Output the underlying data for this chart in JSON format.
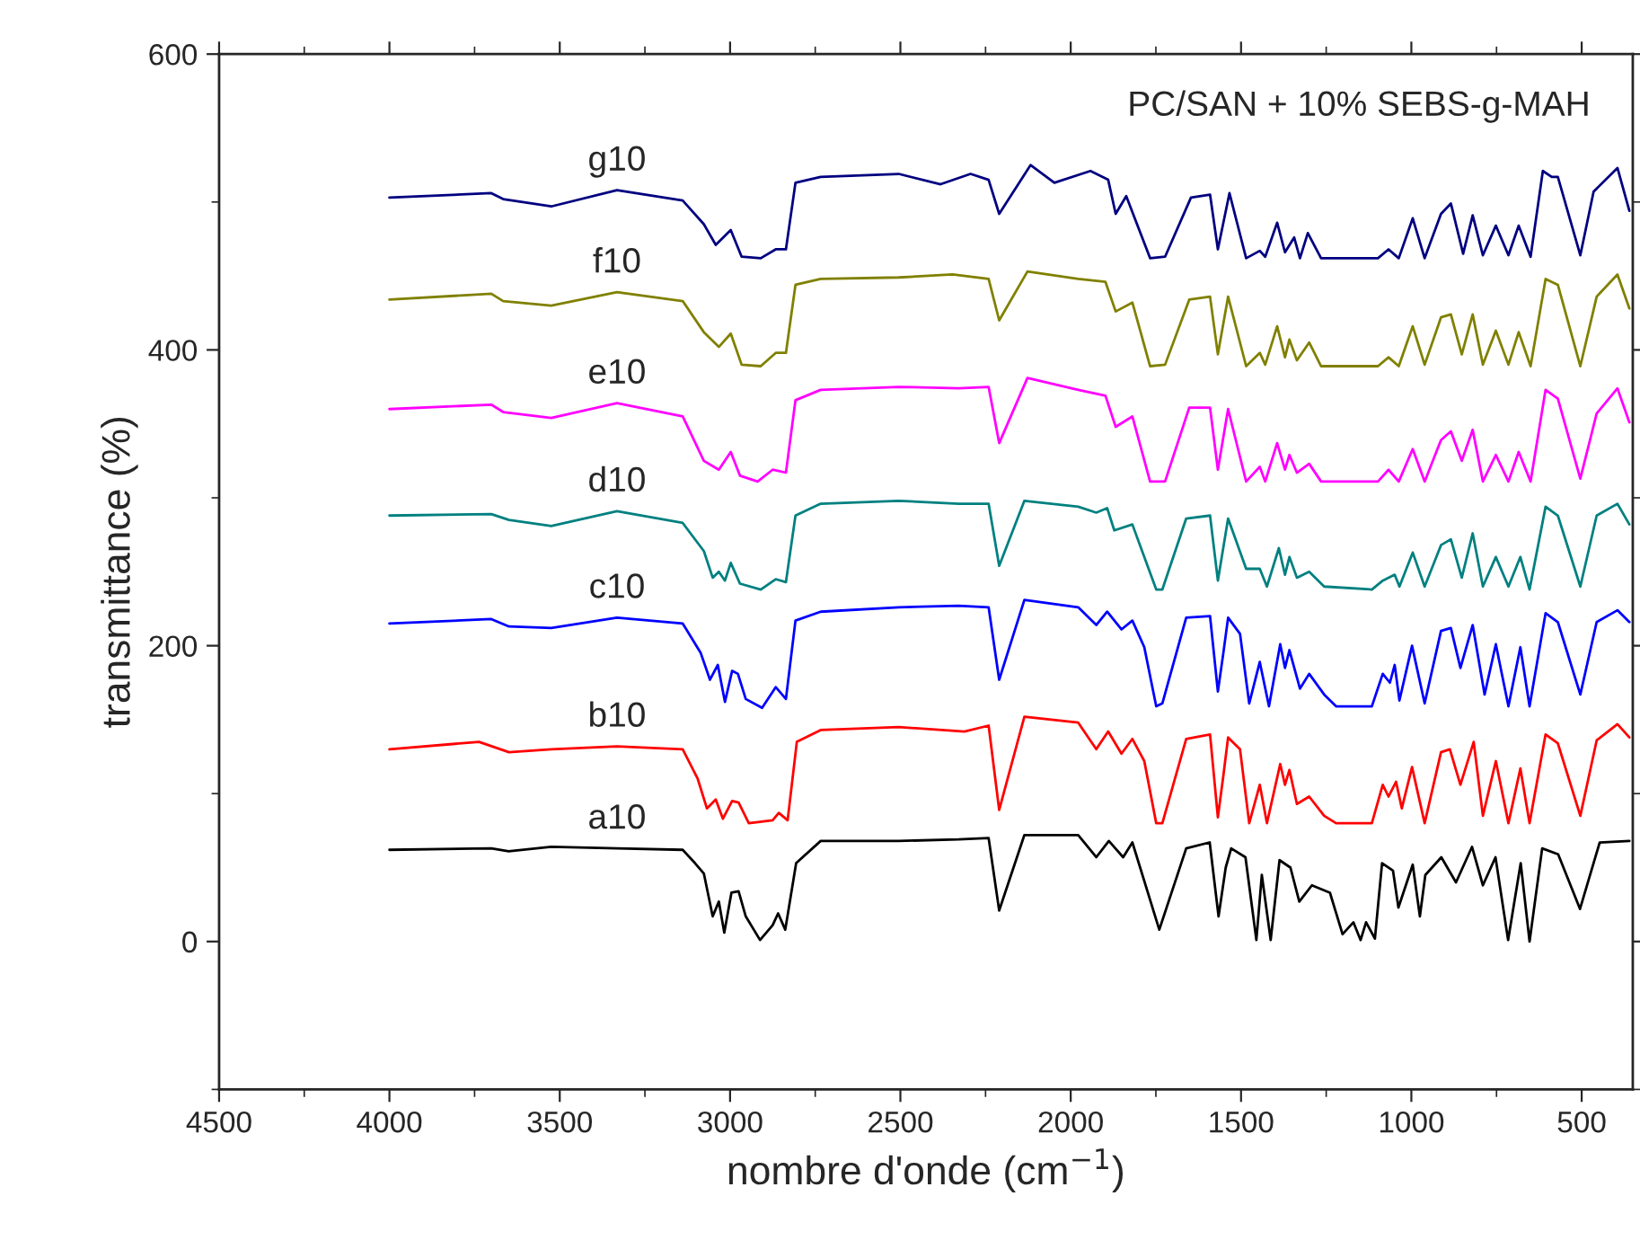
{
  "chart_data": {
    "type": "line",
    "title": "PC/SAN + 10% SEBS-g-MAH",
    "xlabel": "nombre d'onde (cm$^{−1}$)",
    "ylabel": "transmittance (%)",
    "xlim": [
      4500,
      350
    ],
    "ylim": [
      -100,
      600
    ],
    "xticks": [
      4500,
      {
        "value": 4250,
        "label": null
      },
      4000,
      {
        "value": 3750,
        "label": null
      },
      3500,
      {
        "value": 3250,
        "label": null
      },
      3000,
      {
        "value": 2750,
        "label": null
      },
      2500,
      {
        "value": 2250,
        "label": null
      },
      2000,
      {
        "value": 1750,
        "label": null
      },
      1500,
      {
        "value": 1250,
        "label": null
      },
      1000,
      {
        "value": 750,
        "label": null
      },
      500
    ],
    "yticks": [
      {
        "value": -100,
        "label": null
      },
      0,
      {
        "value": 100,
        "label": null
      },
      200,
      {
        "value": 300,
        "label": null
      },
      400,
      {
        "value": 500,
        "label": null
      },
      600
    ],
    "grid": false,
    "legend": false,
    "series": [
      {
        "name": "a10",
        "color": "#000000",
        "x": [
          4000,
          3701,
          3650,
          3525,
          3332,
          3139,
          3103,
          3077,
          3051,
          3033,
          3017,
          2996,
          2975,
          2954,
          2912,
          2875,
          2859,
          2838,
          2806,
          2734,
          2505,
          2329,
          2241,
          2210,
          2136,
          1978,
          1925,
          1888,
          1846,
          1819,
          1740,
          1661,
          1592,
          1566,
          1545,
          1529,
          1487,
          1455,
          1439,
          1413,
          1387,
          1355,
          1329,
          1292,
          1239,
          1202,
          1170,
          1149,
          1133,
          1107,
          1086,
          1054,
          1038,
          996,
          975,
          959,
          912,
          869,
          822,
          790,
          753,
          716,
          679,
          653,
          616,
          569,
          505,
          447,
          360
        ],
        "values": [
          62,
          63,
          61,
          64,
          63,
          62,
          53,
          46,
          17,
          27,
          6,
          33,
          34,
          17,
          1,
          11,
          19,
          8,
          53,
          68,
          68,
          69,
          70,
          21,
          72,
          72,
          57,
          68,
          57,
          67,
          8,
          63,
          67,
          17,
          50,
          63,
          57,
          1,
          45,
          1,
          55,
          50,
          27,
          38,
          33,
          5,
          13,
          1,
          13,
          2,
          53,
          48,
          23,
          52,
          17,
          45,
          57,
          40,
          64,
          38,
          57,
          1,
          53,
          0,
          63,
          59,
          22,
          67,
          68
        ]
      },
      {
        "name": "b10",
        "color": "#ff0000",
        "x": [
          4000,
          3737,
          3649,
          3525,
          3332,
          3139,
          3095,
          3068,
          3042,
          3021,
          2994,
          2975,
          2945,
          2875,
          2857,
          2831,
          2804,
          2734,
          2505,
          2312,
          2241,
          2210,
          2136,
          1978,
          1925,
          1890,
          1851,
          1819,
          1784,
          1749,
          1731,
          1661,
          1591,
          1568,
          1552,
          1538,
          1503,
          1476,
          1445,
          1424,
          1385,
          1371,
          1358,
          1336,
          1300,
          1256,
          1221,
          1116,
          1084,
          1067,
          1045,
          1028,
          998,
          961,
          913,
          887,
          856,
          817,
          790,
          752,
          715,
          680,
          653,
          606,
          570,
          504,
          456,
          395,
          360
        ],
        "values": [
          130,
          135,
          128,
          130,
          132,
          130,
          110,
          90,
          96,
          83,
          95,
          94,
          80,
          82,
          87,
          82,
          135,
          143,
          145,
          142,
          146,
          89,
          152,
          148,
          130,
          142,
          127,
          137,
          122,
          80,
          80,
          137,
          140,
          84,
          112,
          138,
          130,
          80,
          106,
          80,
          120,
          106,
          116,
          93,
          98,
          85,
          80,
          80,
          106,
          98,
          108,
          90,
          118,
          80,
          128,
          130,
          106,
          135,
          85,
          122,
          80,
          117,
          80,
          140,
          134,
          85,
          136,
          147,
          138
        ]
      },
      {
        "name": "c10",
        "color": "#0000ff",
        "x": [
          4000,
          3701,
          3649,
          3525,
          3332,
          3139,
          3086,
          3059,
          3036,
          3015,
          2994,
          2977,
          2954,
          2906,
          2866,
          2836,
          2808,
          2734,
          2505,
          2329,
          2241,
          2210,
          2136,
          1978,
          1925,
          1893,
          1851,
          1819,
          1784,
          1749,
          1731,
          1661,
          1591,
          1568,
          1552,
          1538,
          1503,
          1476,
          1445,
          1418,
          1385,
          1371,
          1358,
          1327,
          1300,
          1256,
          1221,
          1116,
          1084,
          1063,
          1049,
          1035,
          998,
          961,
          913,
          884,
          856,
          820,
          785,
          752,
          715,
          680,
          653,
          606,
          570,
          504,
          456,
          395,
          360
        ],
        "values": [
          215,
          218,
          213,
          212,
          219,
          215,
          195,
          177,
          187,
          162,
          183,
          181,
          164,
          158,
          172,
          164,
          217,
          223,
          226,
          227,
          226,
          177,
          231,
          226,
          214,
          223,
          211,
          217,
          199,
          159,
          161,
          219,
          220,
          169,
          195,
          219,
          208,
          161,
          189,
          159,
          201,
          185,
          197,
          171,
          181,
          167,
          159,
          159,
          181,
          175,
          187,
          163,
          200,
          161,
          210,
          212,
          185,
          214,
          167,
          201,
          159,
          199,
          159,
          222,
          216,
          167,
          216,
          224,
          216
        ]
      },
      {
        "name": "d10",
        "color": "#008080",
        "x": [
          4000,
          3701,
          3649,
          3525,
          3332,
          3139,
          3077,
          3051,
          3033,
          3015,
          2998,
          2971,
          2910,
          2866,
          2836,
          2808,
          2734,
          2505,
          2329,
          2241,
          2210,
          2136,
          1978,
          1925,
          1893,
          1872,
          1819,
          1749,
          1731,
          1661,
          1591,
          1568,
          1538,
          1485,
          1445,
          1424,
          1389,
          1371,
          1358,
          1336,
          1300,
          1256,
          1116,
          1084,
          1049,
          1035,
          996,
          961,
          913,
          884,
          852,
          820,
          790,
          752,
          715,
          680,
          653,
          606,
          570,
          504,
          456,
          395,
          360
        ],
        "values": [
          288,
          289,
          285,
          281,
          291,
          283,
          264,
          246,
          250,
          244,
          256,
          242,
          238,
          245,
          243,
          288,
          296,
          298,
          296,
          296,
          254,
          298,
          294,
          290,
          293,
          278,
          282,
          238,
          238,
          286,
          288,
          244,
          286,
          252,
          252,
          240,
          266,
          248,
          260,
          246,
          250,
          240,
          238,
          244,
          248,
          240,
          263,
          240,
          268,
          272,
          246,
          276,
          240,
          260,
          240,
          260,
          238,
          294,
          288,
          240,
          288,
          296,
          282
        ]
      },
      {
        "name": "e10",
        "color": "#ff00ff",
        "x": [
          4000,
          3701,
          3666,
          3525,
          3332,
          3139,
          3077,
          3033,
          2998,
          2971,
          2919,
          2875,
          2836,
          2808,
          2734,
          2505,
          2329,
          2241,
          2210,
          2127,
          1978,
          1898,
          1868,
          1819,
          1767,
          1723,
          1652,
          1591,
          1568,
          1538,
          1485,
          1445,
          1429,
          1394,
          1371,
          1358,
          1336,
          1300,
          1265,
          1098,
          1067,
          1037,
          996,
          961,
          913,
          884,
          852,
          820,
          790,
          752,
          715,
          685,
          650,
          606,
          570,
          504,
          456,
          395,
          360
        ],
        "values": [
          360,
          363,
          358,
          354,
          364,
          355,
          325,
          319,
          331,
          315,
          311,
          319,
          317,
          366,
          373,
          375,
          374,
          375,
          337,
          381,
          373,
          369,
          348,
          355,
          311,
          311,
          361,
          361,
          319,
          360,
          311,
          321,
          311,
          337,
          319,
          329,
          317,
          323,
          311,
          311,
          319,
          311,
          333,
          311,
          339,
          345,
          325,
          346,
          311,
          329,
          311,
          331,
          311,
          373,
          367,
          313,
          357,
          374,
          351
        ]
      },
      {
        "name": "f10",
        "color": "#808000",
        "x": [
          4000,
          3701,
          3666,
          3525,
          3332,
          3139,
          3077,
          3033,
          2998,
          2966,
          2910,
          2866,
          2836,
          2808,
          2734,
          2505,
          2347,
          2241,
          2210,
          2127,
          1978,
          1898,
          1868,
          1819,
          1767,
          1723,
          1652,
          1591,
          1568,
          1538,
          1485,
          1445,
          1429,
          1394,
          1371,
          1358,
          1336,
          1300,
          1265,
          1098,
          1067,
          1037,
          996,
          961,
          913,
          884,
          852,
          820,
          790,
          752,
          715,
          685,
          650,
          606,
          570,
          504,
          456,
          395,
          360
        ],
        "values": [
          434,
          438,
          433,
          430,
          439,
          433,
          412,
          402,
          411,
          390,
          389,
          398,
          398,
          444,
          448,
          449,
          451,
          448,
          420,
          453,
          448,
          446,
          426,
          432,
          389,
          390,
          434,
          436,
          397,
          436,
          389,
          398,
          390,
          416,
          395,
          407,
          393,
          405,
          389,
          389,
          395,
          389,
          416,
          390,
          422,
          424,
          397,
          424,
          390,
          413,
          390,
          412,
          389,
          448,
          444,
          389,
          436,
          451,
          428
        ]
      },
      {
        "name": "g10",
        "color": "#000080",
        "x": [
          4000,
          3701,
          3666,
          3525,
          3332,
          3139,
          3077,
          3042,
          2998,
          2966,
          2910,
          2866,
          2836,
          2808,
          2734,
          2505,
          2382,
          2294,
          2241,
          2210,
          2118,
          2048,
          1942,
          1890,
          1868,
          1837,
          1767,
          1723,
          1647,
          1591,
          1568,
          1534,
          1485,
          1445,
          1429,
          1394,
          1371,
          1344,
          1327,
          1304,
          1265,
          1098,
          1067,
          1037,
          996,
          961,
          913,
          884,
          848,
          820,
          790,
          752,
          715,
          685,
          650,
          614,
          588,
          570,
          504,
          465,
          395,
          360
        ],
        "values": [
          503,
          506,
          502,
          497,
          508,
          501,
          485,
          471,
          481,
          463,
          462,
          468,
          468,
          513,
          517,
          519,
          512,
          519,
          515,
          492,
          525,
          513,
          521,
          515,
          492,
          504,
          462,
          463,
          503,
          505,
          468,
          506,
          462,
          467,
          463,
          486,
          466,
          476,
          462,
          479,
          462,
          462,
          468,
          462,
          489,
          462,
          492,
          499,
          465,
          491,
          464,
          484,
          464,
          484,
          463,
          521,
          517,
          517,
          464,
          507,
          523,
          494
        ]
      }
    ]
  }
}
